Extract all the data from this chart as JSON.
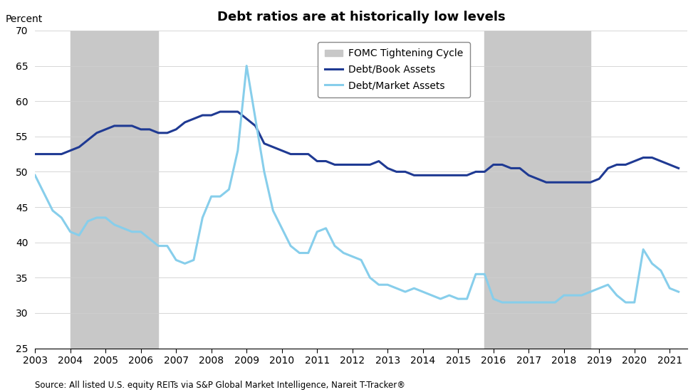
{
  "title": "Debt ratios are at historically low levels",
  "ylabel": "Percent",
  "source": "Source: All listed U.S. equity REITs via S&P Global Market Intelligence, Nareit T-Tracker®",
  "ylim": [
    25,
    70
  ],
  "yticks": [
    25,
    30,
    35,
    40,
    45,
    50,
    55,
    60,
    65,
    70
  ],
  "xlim": [
    2003.0,
    2021.5
  ],
  "shaded_regions": [
    {
      "xmin": 2004.0,
      "xmax": 2006.5
    },
    {
      "xmin": 2015.75,
      "xmax": 2018.75
    }
  ],
  "shade_color": "#c8c8c8",
  "legend_label_fomc": "FOMC Tightening Cycle",
  "legend_label_book": "Debt/Book Assets",
  "legend_label_market": "Debt/Market Assets",
  "book_color": "#1f3a93",
  "market_color": "#87CEEB",
  "debt_book": {
    "x": [
      2003.0,
      2003.25,
      2003.5,
      2003.75,
      2004.0,
      2004.25,
      2004.5,
      2004.75,
      2005.0,
      2005.25,
      2005.5,
      2005.75,
      2006.0,
      2006.25,
      2006.5,
      2006.75,
      2007.0,
      2007.25,
      2007.5,
      2007.75,
      2008.0,
      2008.25,
      2008.5,
      2008.75,
      2009.0,
      2009.25,
      2009.5,
      2009.75,
      2010.0,
      2010.25,
      2010.5,
      2010.75,
      2011.0,
      2011.25,
      2011.5,
      2011.75,
      2012.0,
      2012.25,
      2012.5,
      2012.75,
      2013.0,
      2013.25,
      2013.5,
      2013.75,
      2014.0,
      2014.25,
      2014.5,
      2014.75,
      2015.0,
      2015.25,
      2015.5,
      2015.75,
      2016.0,
      2016.25,
      2016.5,
      2016.75,
      2017.0,
      2017.25,
      2017.5,
      2017.75,
      2018.0,
      2018.25,
      2018.5,
      2018.75,
      2019.0,
      2019.25,
      2019.5,
      2019.75,
      2020.0,
      2020.25,
      2020.5,
      2020.75,
      2021.0,
      2021.25
    ],
    "y": [
      52.5,
      52.5,
      52.5,
      52.5,
      53.0,
      53.5,
      54.5,
      55.5,
      56.0,
      56.5,
      56.5,
      56.5,
      56.0,
      56.0,
      55.5,
      55.5,
      56.0,
      57.0,
      57.5,
      58.0,
      58.0,
      58.5,
      58.5,
      58.5,
      57.5,
      56.5,
      54.0,
      53.5,
      53.0,
      52.5,
      52.5,
      52.5,
      51.5,
      51.5,
      51.0,
      51.0,
      51.0,
      51.0,
      51.0,
      51.5,
      50.5,
      50.0,
      50.0,
      49.5,
      49.5,
      49.5,
      49.5,
      49.5,
      49.5,
      49.5,
      50.0,
      50.0,
      51.0,
      51.0,
      50.5,
      50.5,
      49.5,
      49.0,
      48.5,
      48.5,
      48.5,
      48.5,
      48.5,
      48.5,
      49.0,
      50.5,
      51.0,
      51.0,
      51.5,
      52.0,
      52.0,
      51.5,
      51.0,
      50.5
    ]
  },
  "debt_market": {
    "x": [
      2003.0,
      2003.25,
      2003.5,
      2003.75,
      2004.0,
      2004.25,
      2004.5,
      2004.75,
      2005.0,
      2005.25,
      2005.5,
      2005.75,
      2006.0,
      2006.25,
      2006.5,
      2006.75,
      2007.0,
      2007.25,
      2007.5,
      2007.75,
      2008.0,
      2008.25,
      2008.5,
      2008.75,
      2009.0,
      2009.25,
      2009.5,
      2009.75,
      2010.0,
      2010.25,
      2010.5,
      2010.75,
      2011.0,
      2011.25,
      2011.5,
      2011.75,
      2012.0,
      2012.25,
      2012.5,
      2012.75,
      2013.0,
      2013.25,
      2013.5,
      2013.75,
      2014.0,
      2014.25,
      2014.5,
      2014.75,
      2015.0,
      2015.25,
      2015.5,
      2015.75,
      2016.0,
      2016.25,
      2016.5,
      2016.75,
      2017.0,
      2017.25,
      2017.5,
      2017.75,
      2018.0,
      2018.25,
      2018.5,
      2018.75,
      2019.0,
      2019.25,
      2019.5,
      2019.75,
      2020.0,
      2020.25,
      2020.5,
      2020.75,
      2021.0,
      2021.25
    ],
    "y": [
      49.5,
      47.0,
      44.5,
      43.5,
      41.5,
      41.0,
      43.0,
      43.5,
      43.5,
      42.5,
      42.0,
      41.5,
      41.5,
      40.5,
      39.5,
      39.5,
      37.5,
      37.0,
      37.5,
      43.5,
      46.5,
      46.5,
      47.5,
      53.0,
      65.0,
      57.5,
      50.0,
      44.5,
      42.0,
      39.5,
      38.5,
      38.5,
      41.5,
      42.0,
      39.5,
      38.5,
      38.0,
      37.5,
      35.0,
      34.0,
      34.0,
      33.5,
      33.0,
      33.5,
      33.0,
      32.5,
      32.0,
      32.5,
      32.0,
      32.0,
      35.5,
      35.5,
      32.0,
      31.5,
      31.5,
      31.5,
      31.5,
      31.5,
      31.5,
      31.5,
      32.5,
      32.5,
      32.5,
      33.0,
      33.5,
      34.0,
      32.5,
      31.5,
      31.5,
      39.0,
      37.0,
      36.0,
      33.5,
      33.0
    ]
  }
}
